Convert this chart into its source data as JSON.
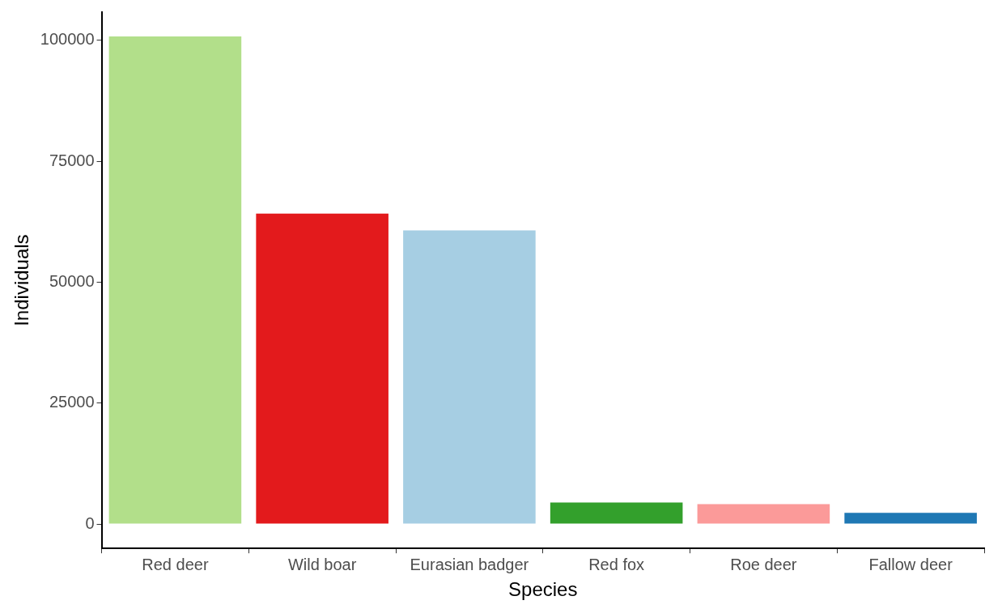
{
  "chart_data": {
    "type": "bar",
    "xlabel": "Species",
    "ylabel": "Individuals",
    "categories": [
      "Red deer",
      "Wild boar",
      "Eurasian badger",
      "Red fox",
      "Roe deer",
      "Fallow deer"
    ],
    "values": [
      100800,
      64200,
      60700,
      4450,
      4100,
      2300
    ],
    "colors": [
      "#b2df8a",
      "#e31a1c",
      "#a6cee3",
      "#33a02c",
      "#fb9a99",
      "#1f78b4"
    ],
    "ylim": [
      -5040,
      105840
    ],
    "yticks": [
      0,
      25000,
      50000,
      75000,
      100000
    ],
    "grid": false,
    "legend": false
  }
}
